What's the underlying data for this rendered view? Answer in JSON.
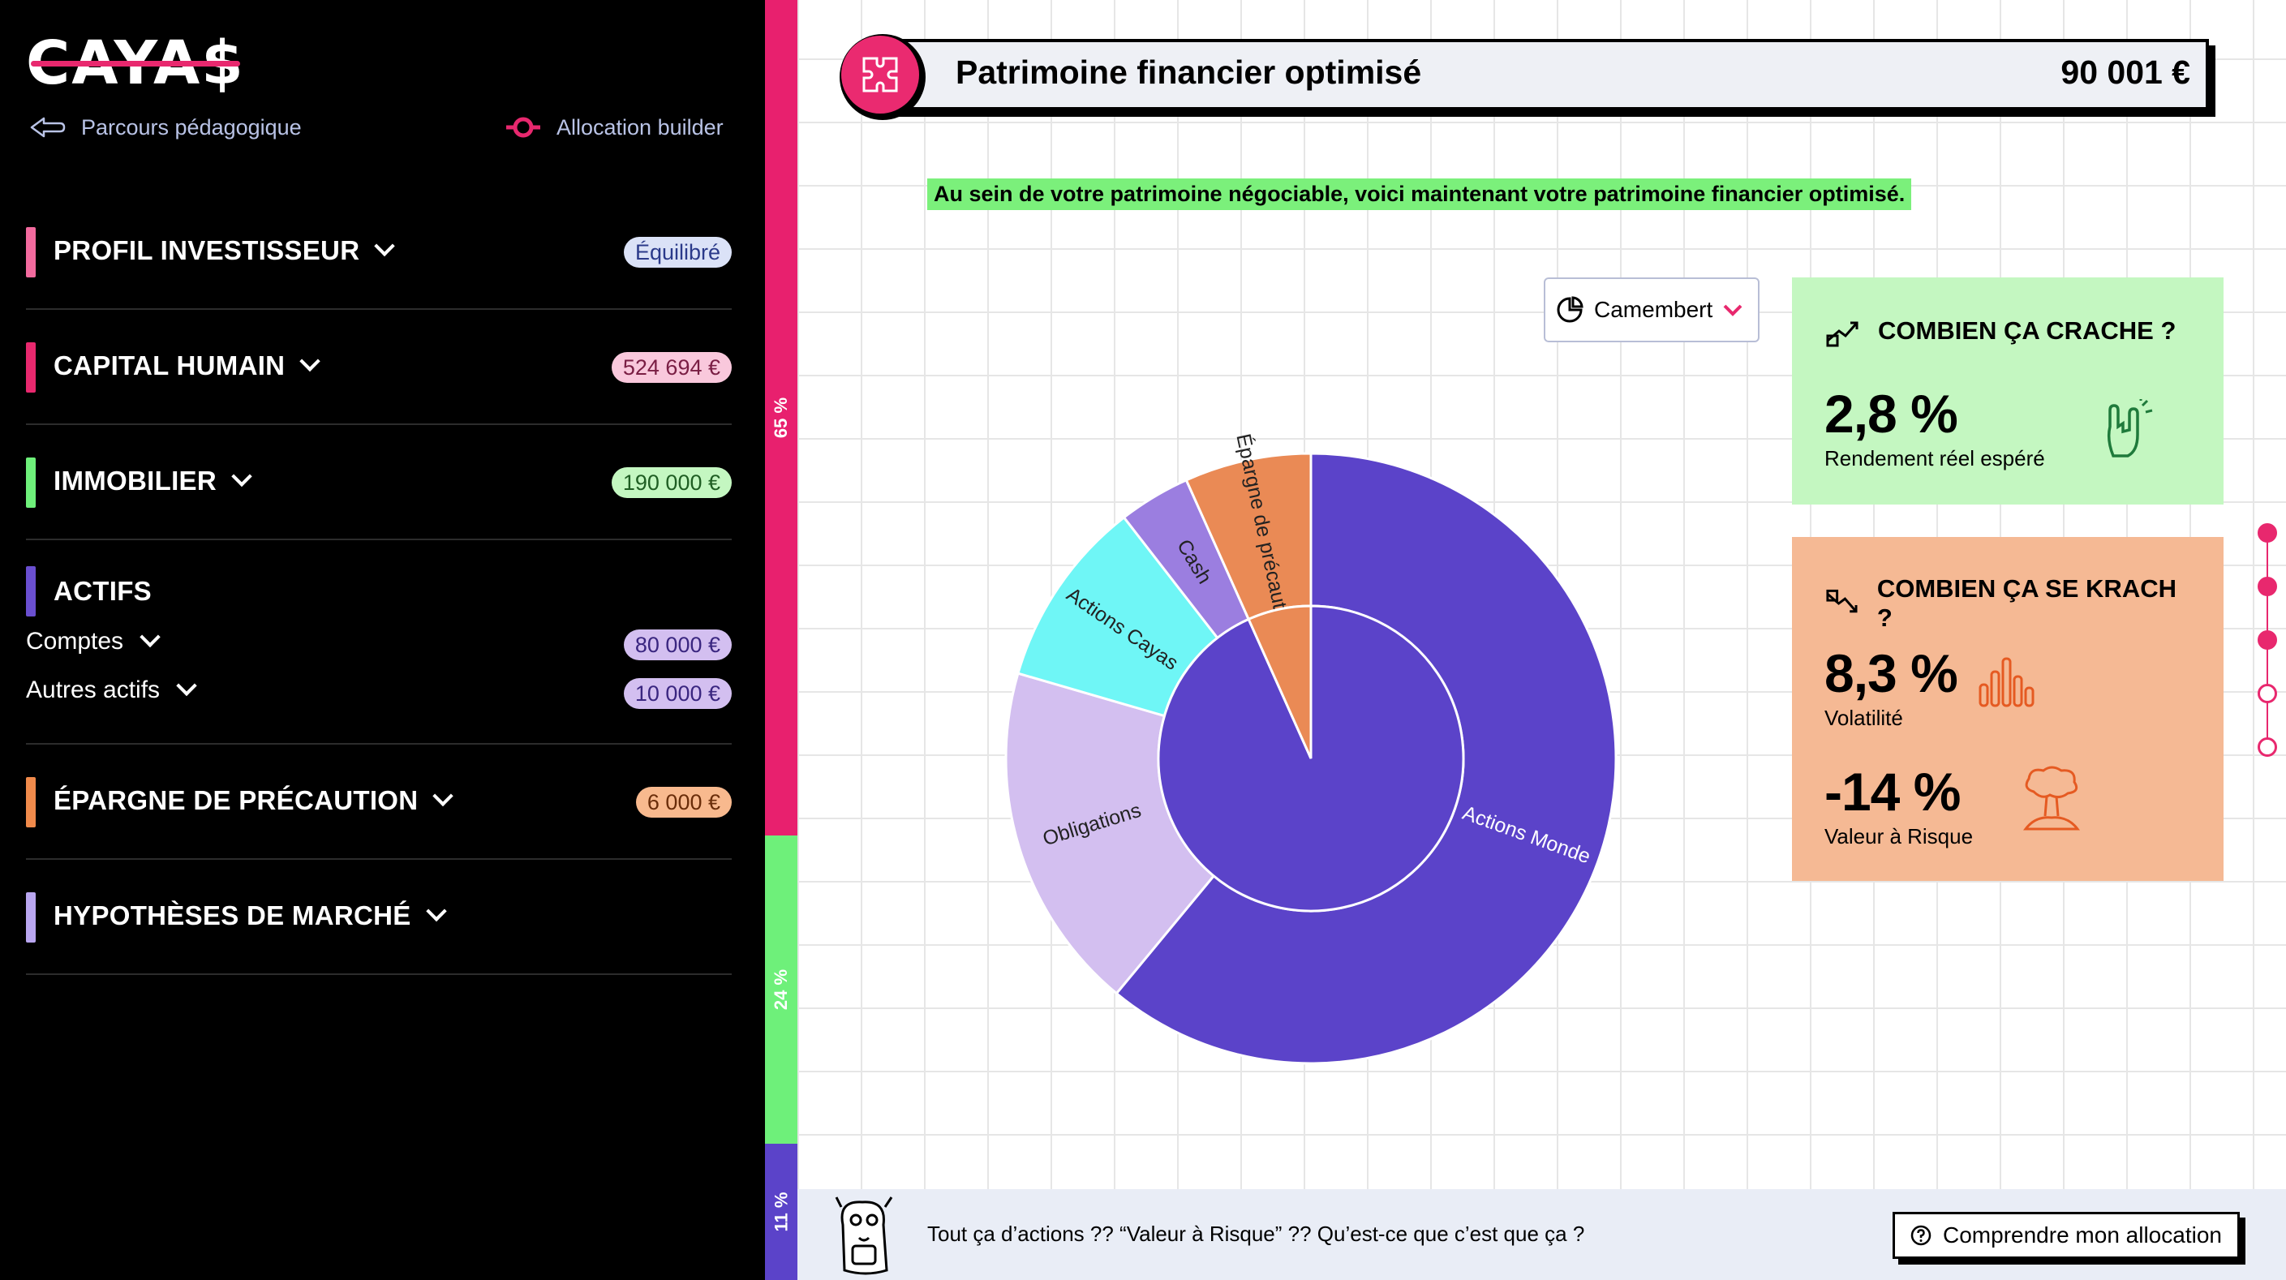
{
  "brand": {
    "logo_text": "CAYA$"
  },
  "nav": {
    "left_link": "Parcours pédagogique",
    "right_link": "Allocation builder"
  },
  "sidebar": {
    "sections": [
      {
        "title": "PROFIL INVESTISSEUR",
        "badge": "Équilibré",
        "color": "#f26a9e"
      },
      {
        "title": "CAPITAL HUMAIN",
        "badge": "524 694 €",
        "color": "#e8286e"
      },
      {
        "title": "IMMOBILIER",
        "badge": "190 000 €",
        "color": "#6ef07a"
      },
      {
        "title": "ACTIFS",
        "color": "#6a4fd0",
        "rows": [
          {
            "label": "Comptes",
            "badge": "80 000 €"
          },
          {
            "label": "Autres actifs",
            "badge": "10 000 €"
          }
        ]
      },
      {
        "title": "ÉPARGNE DE PRÉCAUTION",
        "badge": "6 000 €",
        "color": "#f08a4b"
      },
      {
        "title": "HYPOTHÈSES DE MARCHÉ",
        "color": "#b9a6f0"
      }
    ]
  },
  "strip": [
    {
      "label": "65 %",
      "color": "#e8206e",
      "fraction": 0.65
    },
    {
      "label": "24 %",
      "color": "#6ef07a",
      "fraction": 0.24
    },
    {
      "label": "11 %",
      "color": "#5b43c9",
      "fraction": 0.11
    }
  ],
  "header": {
    "title": "Patrimoine financier optimisé",
    "total": "90 001 €"
  },
  "intro": "Au sein de votre patrimoine négociable, voici maintenant votre patrimoine financier optimisé.",
  "chart_selector": {
    "value": "Camembert"
  },
  "chart_data": {
    "type": "pie",
    "inner": [
      {
        "name": "",
        "value": 93.3,
        "color": "#5b43c9"
      },
      {
        "name": "",
        "value": 6.7,
        "color": "#ea8a55"
      }
    ],
    "outer": [
      {
        "name": "Actions Monde",
        "value": 61,
        "color": "#5b43c9"
      },
      {
        "name": "Obligations",
        "value": 18.5,
        "color": "#d3bff0"
      },
      {
        "name": "Actions Cayas",
        "value": 10,
        "color": "#6ff6f6"
      },
      {
        "name": "Cash",
        "value": 3.8,
        "color": "#9b7ee0"
      },
      {
        "name": "Épargne de précaution",
        "value": 6.7,
        "color": "#ea8a55"
      }
    ]
  },
  "cards": {
    "gain": {
      "title": "COMBIEN ÇA CRACHE ?",
      "value": "2,8 %",
      "label": "Rendement réel espéré",
      "color": "#c4f7c1"
    },
    "risk": {
      "title": "COMBIEN ÇA SE KRACH ?",
      "color": "#f5b994",
      "metrics": [
        {
          "value": "8,3 %",
          "label": "Volatilité"
        },
        {
          "value": "-14 %",
          "label": "Valeur à Risque"
        }
      ]
    }
  },
  "footer": {
    "text": "Tout ça d’actions ?? “Valeur à Risque” ?? Qu’est-ce que c’est que ça ?",
    "button": "Comprendre mon allocation"
  }
}
